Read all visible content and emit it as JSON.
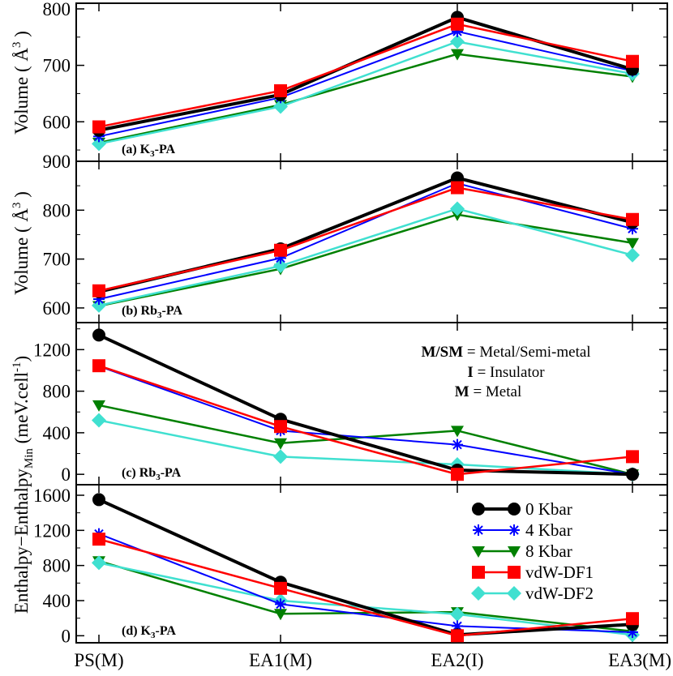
{
  "chart_data": {
    "type": "line",
    "categories": [
      "PS(M)",
      "EA1(M)",
      "EA2(I)",
      "EA3(M)"
    ],
    "legend": {
      "position": "bottom-right of panel (d)",
      "entries": [
        {
          "name": "0 Kbar",
          "color": "#000000",
          "marker": "circle"
        },
        {
          "name": "4 Kbar",
          "color": "#0000ff",
          "marker": "asterisk"
        },
        {
          "name": "8 Kbar",
          "color": "#008000",
          "marker": "triangle-down"
        },
        {
          "name": "vdW-DF1",
          "color": "#ff0000",
          "marker": "square"
        },
        {
          "name": "vdW-DF2",
          "color": "#40e0d0",
          "marker": "diamond"
        }
      ]
    },
    "ylabel_volume": "Volume ( Å",
    "ylabel_volume_sup": "3",
    "ylabel_volume_close": " )",
    "ylabel_enthalpy": "Enthalpy−Enthalpy",
    "ylabel_enthalpy_sub": "Min",
    "ylabel_enthalpy_unit": " (meV.cell",
    "ylabel_enthalpy_sup": "-1",
    "ylabel_enthalpy_close": ")",
    "annotation": {
      "line1_bold": "M/SM",
      "line1_text": " = Metal/Semi-metal",
      "line2_bold": "I",
      "line2_text": " = Insulator",
      "line3_bold": "M",
      "line3_text": " = Metal"
    },
    "panels": [
      {
        "id": "a",
        "label_pre": "(a) K",
        "label_sub": "3",
        "label_post": "-PA",
        "ylim": [
          530,
          810
        ],
        "yticks": [
          600,
          700,
          800
        ],
        "series": [
          {
            "name": "0 Kbar",
            "values": [
              585,
              648,
              785,
              693
            ]
          },
          {
            "name": "4 Kbar",
            "values": [
              574,
              643,
              760,
              690
            ]
          },
          {
            "name": "8 Kbar",
            "values": [
              563,
              630,
              720,
              680
            ]
          },
          {
            "name": "vdW-DF1",
            "values": [
              591,
              655,
              773,
              707
            ]
          },
          {
            "name": "vdW-DF2",
            "values": [
              561,
              627,
              742,
              685
            ]
          }
        ]
      },
      {
        "id": "b",
        "label_pre": "(b) Rb",
        "label_sub": "3",
        "label_post": "-PA",
        "ylim": [
          570,
          900
        ],
        "yticks": [
          600,
          700,
          800,
          900
        ],
        "series": [
          {
            "name": "0 Kbar",
            "values": [
              633,
              721,
              866,
              775
            ]
          },
          {
            "name": "4 Kbar",
            "values": [
              618,
              702,
              855,
              762
            ]
          },
          {
            "name": "8 Kbar",
            "values": [
              604,
              680,
              791,
              733
            ]
          },
          {
            "name": "vdW-DF1",
            "values": [
              635,
              718,
              846,
              781
            ]
          },
          {
            "name": "vdW-DF2",
            "values": [
              605,
              686,
              803,
              708
            ]
          }
        ]
      },
      {
        "id": "c",
        "label_pre": "(c) Rb",
        "label_sub": "3",
        "label_post": "-PA",
        "ylim": [
          -100,
          1460
        ],
        "yticks": [
          0,
          400,
          800,
          1200
        ],
        "series": [
          {
            "name": "0 Kbar",
            "values": [
              1340,
              530,
              40,
              0
            ]
          },
          {
            "name": "4 Kbar",
            "values": [
              1040,
              420,
              285,
              0
            ]
          },
          {
            "name": "8 Kbar",
            "values": [
              665,
              300,
              420,
              0
            ]
          },
          {
            "name": "vdW-DF1",
            "values": [
              1045,
              460,
              0,
              170
            ]
          },
          {
            "name": "vdW-DF2",
            "values": [
              520,
              170,
              95,
              0
            ]
          }
        ]
      },
      {
        "id": "d",
        "label_pre": "(d) K",
        "label_sub": "3",
        "label_post": "-PA",
        "ylim": [
          -80,
          1720
        ],
        "yticks": [
          0,
          400,
          800,
          1200,
          1600
        ],
        "series": [
          {
            "name": "0 Kbar",
            "values": [
              1550,
              610,
              10,
              130
            ]
          },
          {
            "name": "4 Kbar",
            "values": [
              1160,
              360,
              110,
              40
            ]
          },
          {
            "name": "8 Kbar",
            "values": [
              850,
              250,
              270,
              50
            ]
          },
          {
            "name": "vdW-DF1",
            "values": [
              1100,
              540,
              0,
              195
            ]
          },
          {
            "name": "vdW-DF2",
            "values": [
              830,
              400,
              245,
              10
            ]
          }
        ]
      }
    ]
  }
}
